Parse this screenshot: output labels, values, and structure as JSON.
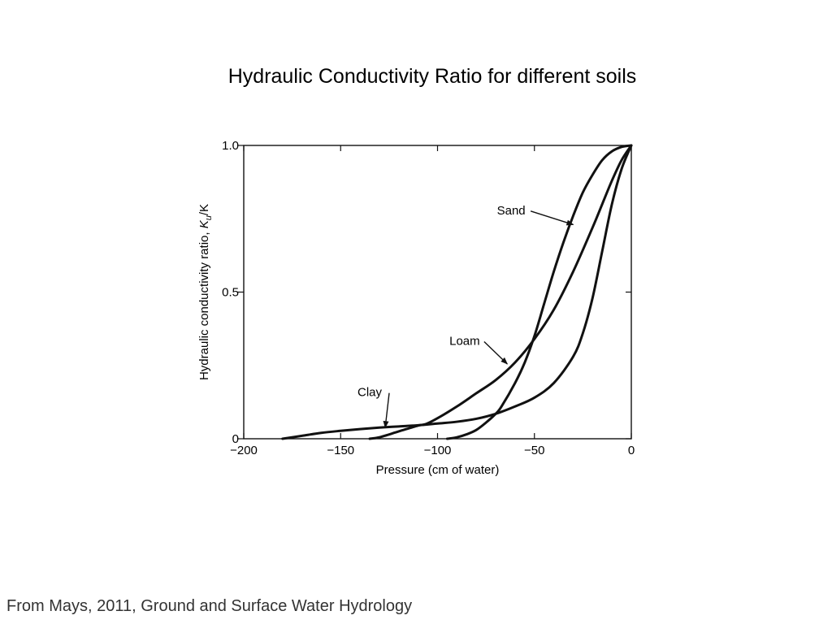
{
  "slide": {
    "title": "Hydraulic Conductivity Ratio for different soils",
    "citation": "From Mays, 2011, Ground and Surface Water Hydrology"
  },
  "chart_data": {
    "type": "line",
    "xlabel": "Pressure (cm of water)",
    "ylabel_prefix": "Hydraulic conductivity ratio, ",
    "ylabel_symbol": "K",
    "ylabel_subscript": "u",
    "ylabel_suffix": "/K",
    "xlim": [
      -200,
      0
    ],
    "ylim": [
      0,
      1
    ],
    "x_ticks": [
      {
        "value": -200,
        "label": "−200"
      },
      {
        "value": -150,
        "label": "−150"
      },
      {
        "value": -100,
        "label": "−100"
      },
      {
        "value": -50,
        "label": "−50"
      },
      {
        "value": 0,
        "label": "0"
      }
    ],
    "y_ticks": [
      {
        "value": 0,
        "label": "0"
      },
      {
        "value": 0.5,
        "label": "0.5"
      },
      {
        "value": 1.0,
        "label": "1.0"
      }
    ],
    "grid": false,
    "line_color": "#111111",
    "series": [
      {
        "name": "Sand",
        "x": [
          -95,
          -90,
          -85,
          -80,
          -75,
          -70,
          -67,
          -60,
          -55,
          -50,
          -45,
          -40,
          -35,
          -30,
          -25,
          -20,
          -15,
          -10,
          -5,
          0
        ],
        "y": [
          0,
          0.005,
          0.015,
          0.03,
          0.055,
          0.085,
          0.11,
          0.19,
          0.26,
          0.35,
          0.46,
          0.57,
          0.67,
          0.76,
          0.84,
          0.9,
          0.95,
          0.98,
          0.995,
          1.0
        ],
        "label_x": -62,
        "label_y": 0.765,
        "arrow_x": -30,
        "arrow_y": 0.73
      },
      {
        "name": "Loam",
        "x": [
          -135,
          -130,
          -120,
          -110,
          -106,
          -100,
          -90,
          -80,
          -70,
          -60,
          -50,
          -40,
          -30,
          -20,
          -15,
          -10,
          -5,
          0
        ],
        "y": [
          0,
          0.005,
          0.025,
          0.045,
          0.05,
          0.07,
          0.11,
          0.155,
          0.2,
          0.26,
          0.34,
          0.44,
          0.57,
          0.72,
          0.8,
          0.88,
          0.95,
          1.0
        ],
        "label_x": -86,
        "label_y": 0.32,
        "arrow_x": -64,
        "arrow_y": 0.255
      },
      {
        "name": "Clay",
        "x": [
          -180,
          -170,
          -160,
          -150,
          -140,
          -130,
          -120,
          -110,
          -100,
          -90,
          -80,
          -70,
          -60,
          -50,
          -40,
          -30,
          -25,
          -20,
          -15,
          -10,
          -5,
          0
        ],
        "y": [
          0,
          0.01,
          0.02,
          0.027,
          0.033,
          0.038,
          0.042,
          0.046,
          0.052,
          0.058,
          0.068,
          0.085,
          0.11,
          0.14,
          0.19,
          0.28,
          0.36,
          0.48,
          0.64,
          0.8,
          0.92,
          1.0
        ],
        "label_x": -135,
        "label_y": 0.145,
        "arrow_x": -127,
        "arrow_y": 0.038
      }
    ]
  }
}
